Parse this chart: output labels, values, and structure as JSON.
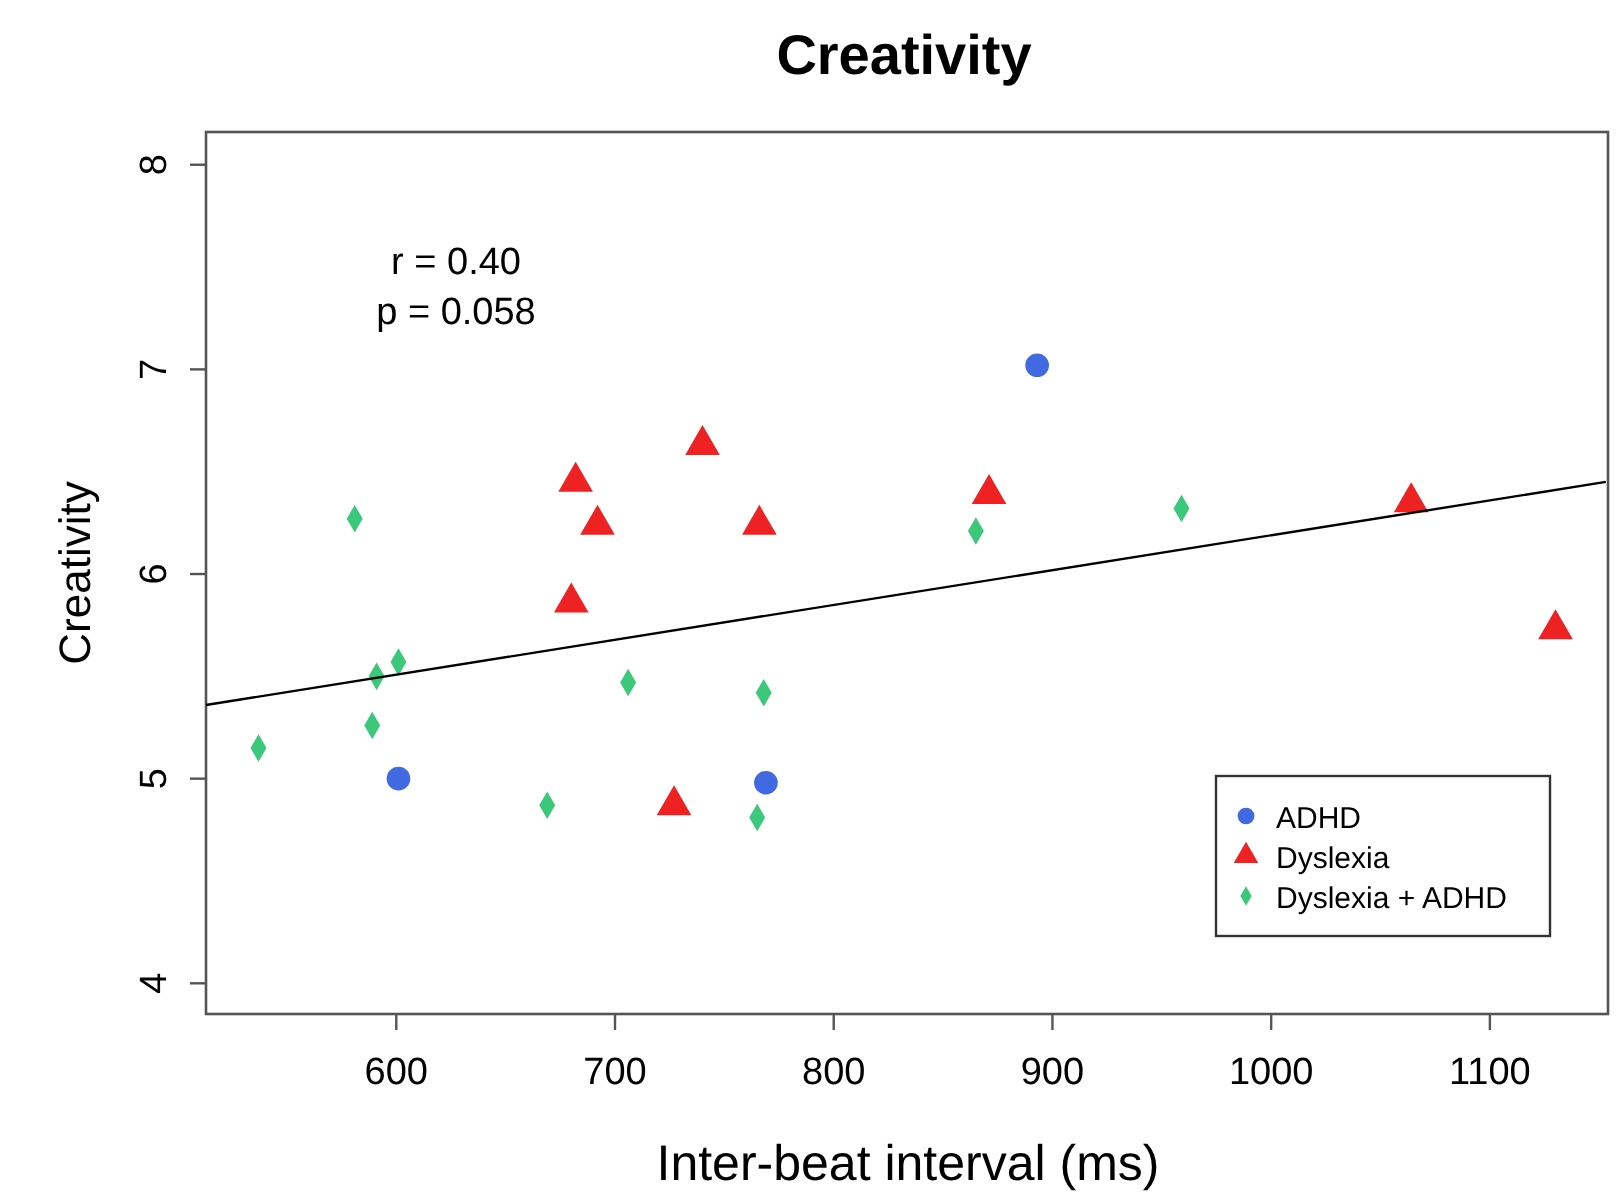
{
  "chart_data": {
    "type": "scatter",
    "title": "Creativity",
    "xlabel": "Inter-beat interval (ms)",
    "ylabel": "Creativity",
    "xlim": [
      513,
      1154
    ],
    "ylim": [
      3.85,
      8.16
    ],
    "xticks": [
      600,
      700,
      800,
      900,
      1000,
      1100
    ],
    "yticks": [
      4,
      5,
      6,
      7,
      8
    ],
    "grid": false,
    "legend": "bottom right",
    "annotations": [
      "r = 0.40",
      "p = 0.058"
    ],
    "series": [
      {
        "name": "ADHD",
        "color": "#4169e1",
        "marker": "circle",
        "x": [
          601,
          769,
          893
        ],
        "values": [
          5.0,
          4.98,
          7.02
        ]
      },
      {
        "name": "Dyslexia",
        "color": "#ee2222",
        "marker": "triangle",
        "x": [
          682,
          692,
          740,
          766,
          680,
          727,
          871,
          1064,
          1130
        ],
        "values": [
          6.47,
          6.26,
          6.65,
          6.26,
          5.88,
          4.89,
          6.41,
          6.37,
          5.75
        ]
      },
      {
        "name": "Dyslexia + ADHD",
        "color": "#3cc87a",
        "marker": "diamond",
        "x": [
          581,
          591,
          601,
          589,
          537,
          669,
          706,
          768,
          765,
          865,
          959
        ],
        "values": [
          6.27,
          5.5,
          5.57,
          5.26,
          5.15,
          4.87,
          5.47,
          5.42,
          4.81,
          6.21,
          6.32
        ]
      },
      {
        "type": "line",
        "color": "#000000",
        "marker": "none",
        "line_style": "solid",
        "x": [
          513,
          1153
        ],
        "values": [
          5.36,
          6.45
        ]
      }
    ]
  }
}
